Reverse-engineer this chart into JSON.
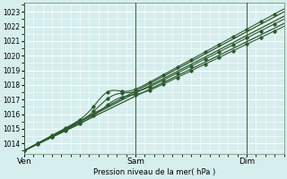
{
  "bg_color": "#d6eeee",
  "grid_color": "#ffffff",
  "line_color": "#2d5a2d",
  "ylabel": "Pression niveau de la mer( hPa )",
  "xtick_labels": [
    "Ven",
    "Sam",
    "Dim"
  ],
  "xtick_positions": [
    0,
    48,
    96
  ],
  "ylim": [
    1013.3,
    1023.6
  ],
  "yticks": [
    1014,
    1015,
    1016,
    1017,
    1018,
    1019,
    1020,
    1021,
    1022,
    1023
  ],
  "xlim": [
    0,
    112
  ],
  "n_points": 113,
  "vline_color": "#3a5a3a",
  "spine_color": "#7a9a7a"
}
